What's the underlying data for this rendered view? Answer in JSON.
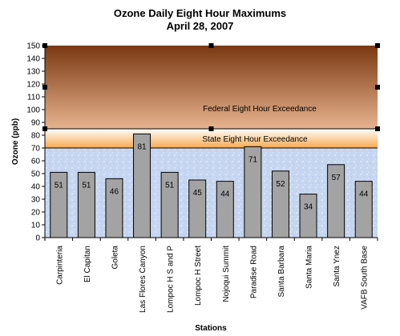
{
  "chart_data": {
    "type": "bar",
    "title": "Ozone Daily Eight Hour Maximums",
    "subtitle": "April 28, 2007",
    "xlabel": "Stations",
    "ylabel": "Ozone (ppb)",
    "ylim": [
      0,
      150
    ],
    "yticks": [
      0,
      10,
      20,
      30,
      40,
      50,
      60,
      70,
      80,
      90,
      100,
      110,
      120,
      130,
      140,
      150
    ],
    "categories": [
      "Carpinteria",
      "El Capitan",
      "Goleta",
      "Las Flores Canyon",
      "Lompoc H S and P",
      "Lompoc H Street",
      "Nojoqui Summit",
      "Paradise Road",
      "Santa Barbara",
      "Santa Maria",
      "Santa Ynez",
      "VAFB South Base"
    ],
    "values": [
      51,
      51,
      46,
      81,
      51,
      45,
      44,
      71,
      52,
      34,
      57,
      44
    ],
    "value_labels": [
      "51",
      "51",
      "46",
      "81",
      "51",
      "45",
      "44",
      "71",
      "52",
      "34",
      "57",
      "44"
    ],
    "bands": [
      {
        "label": "Federal Eight Hour Exceedance",
        "from": 85,
        "to": 150,
        "color_top": "#7a3812",
        "color_bottom": "#e7b48f"
      },
      {
        "label": "State Eight Hour Exceedance",
        "from": 70,
        "to": 85,
        "color_top": "#ffffff",
        "color_bottom": "#f6a94e"
      }
    ],
    "below_band_color": "#c6d6f0",
    "bar_color": "#a3a3a3",
    "grid": false
  }
}
